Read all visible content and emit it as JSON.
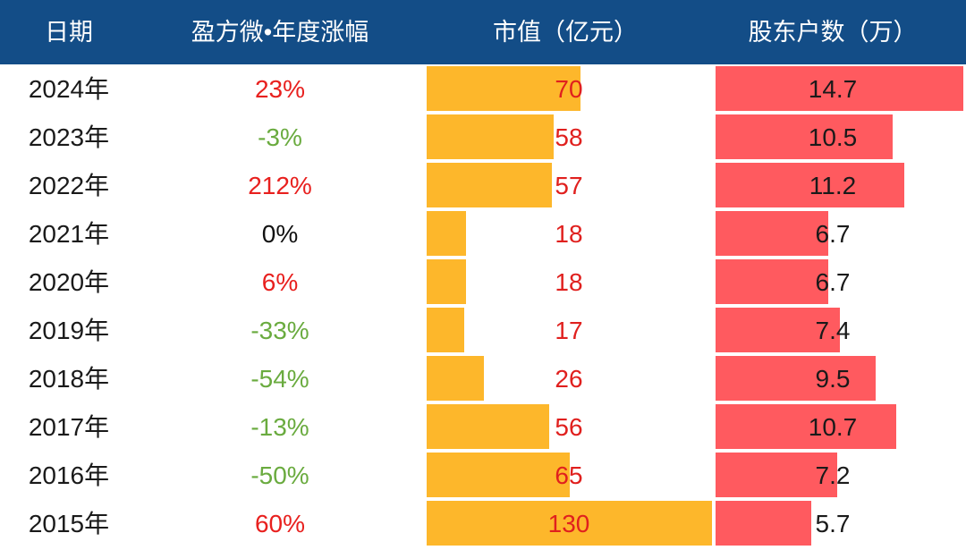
{
  "colors": {
    "header_bg": "#134d87",
    "header_text": "#ffffff",
    "market_cap_bar": "#fdb72b",
    "shareholders_bar": "#ff5a5f",
    "change_up": "#e8201e",
    "change_down": "#6aab3f",
    "change_flat": "#111111",
    "market_cap_text": "#e0201e",
    "shareholders_text": "#1a1a1a",
    "date_text": "#1a1a1a"
  },
  "chart_data": {
    "type": "table",
    "columns": [
      "日期",
      "盈方微•年度涨幅",
      "市值（亿元）",
      "股东户数（万）"
    ],
    "rows": [
      {
        "date": "2024年",
        "change": "23%",
        "market_cap": 70,
        "shareholders": 14.7
      },
      {
        "date": "2023年",
        "change": "-3%",
        "market_cap": 58,
        "shareholders": 10.5
      },
      {
        "date": "2022年",
        "change": "212%",
        "market_cap": 57,
        "shareholders": 11.2
      },
      {
        "date": "2021年",
        "change": "0%",
        "market_cap": 18,
        "shareholders": 6.7
      },
      {
        "date": "2020年",
        "change": "6%",
        "market_cap": 18,
        "shareholders": 6.7
      },
      {
        "date": "2019年",
        "change": "-33%",
        "market_cap": 17,
        "shareholders": 7.4
      },
      {
        "date": "2018年",
        "change": "-54%",
        "market_cap": 26,
        "shareholders": 9.5
      },
      {
        "date": "2017年",
        "change": "-13%",
        "market_cap": 56,
        "shareholders": 10.7
      },
      {
        "date": "2016年",
        "change": "-50%",
        "market_cap": 65,
        "shareholders": 7.2
      },
      {
        "date": "2015年",
        "change": "60%",
        "market_cap": 130,
        "shareholders": 5.7
      }
    ]
  }
}
